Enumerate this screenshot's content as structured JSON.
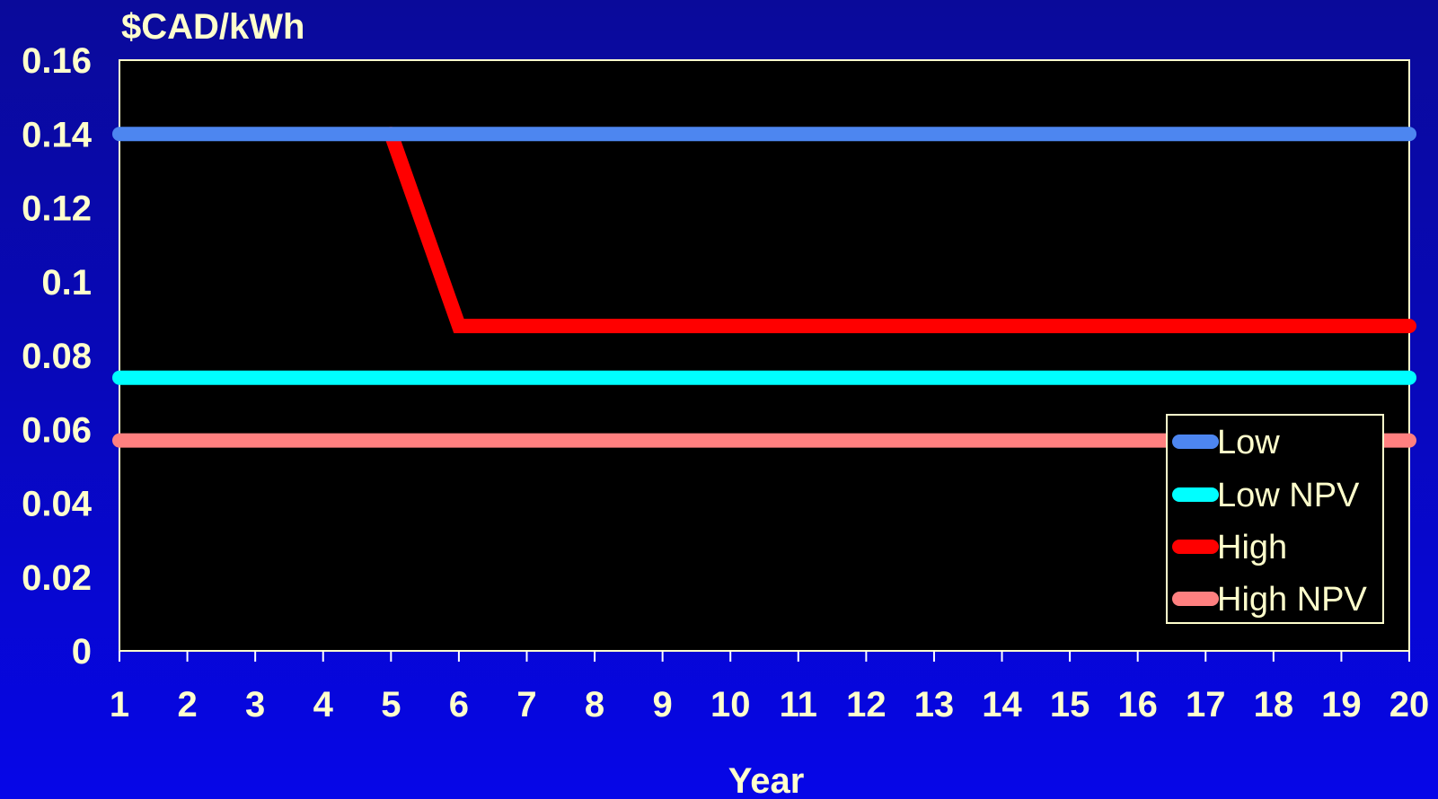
{
  "chart_data": {
    "type": "line",
    "title": "",
    "ylabel": "$CAD/kWh",
    "xlabel": "Year",
    "x": [
      1,
      2,
      3,
      4,
      5,
      6,
      7,
      8,
      9,
      10,
      11,
      12,
      13,
      14,
      15,
      16,
      17,
      18,
      19,
      20
    ],
    "y_ticks": [
      "0",
      "0.02",
      "0.04",
      "0.06",
      "0.08",
      "0.1",
      "0.12",
      "0.14",
      "0.16"
    ],
    "x_ticks": [
      "1",
      "2",
      "3",
      "4",
      "5",
      "6",
      "7",
      "8",
      "9",
      "10",
      "11",
      "12",
      "13",
      "14",
      "15",
      "16",
      "17",
      "18",
      "19",
      "20"
    ],
    "ylim": [
      0,
      0.16
    ],
    "xlim": [
      1,
      20
    ],
    "grid": false,
    "legend_position": "right",
    "series": [
      {
        "name": "Low",
        "color": "#4d86f0",
        "values": [
          0.14,
          0.14,
          0.14,
          0.14,
          0.14,
          0.14,
          0.14,
          0.14,
          0.14,
          0.14,
          0.14,
          0.14,
          0.14,
          0.14,
          0.14,
          0.14,
          0.14,
          0.14,
          0.14,
          0.14
        ]
      },
      {
        "name": "Low NPV",
        "color": "#00ffff",
        "values": [
          0.074,
          0.074,
          0.074,
          0.074,
          0.074,
          0.074,
          0.074,
          0.074,
          0.074,
          0.074,
          0.074,
          0.074,
          0.074,
          0.074,
          0.074,
          0.074,
          0.074,
          0.074,
          0.074,
          0.074
        ]
      },
      {
        "name": "High",
        "color": "#ff0000",
        "values": [
          null,
          null,
          null,
          null,
          0.14,
          0.088,
          0.088,
          0.088,
          0.088,
          0.088,
          0.088,
          0.088,
          0.088,
          0.088,
          0.088,
          0.088,
          0.088,
          0.088,
          0.088,
          0.088
        ]
      },
      {
        "name": "High NPV",
        "color": "#ff8080",
        "values": [
          0.057,
          0.057,
          0.057,
          0.057,
          0.057,
          0.057,
          0.057,
          0.057,
          0.057,
          0.057,
          0.057,
          0.057,
          0.057,
          0.057,
          0.057,
          0.057,
          0.057,
          0.057,
          0.057,
          0.057
        ]
      }
    ]
  },
  "colors": {
    "background_top": "#0a0a9a",
    "background_bottom": "#0606e8",
    "plot_background": "#000000",
    "text": "#ffffcc",
    "axis": "#ffffff"
  }
}
